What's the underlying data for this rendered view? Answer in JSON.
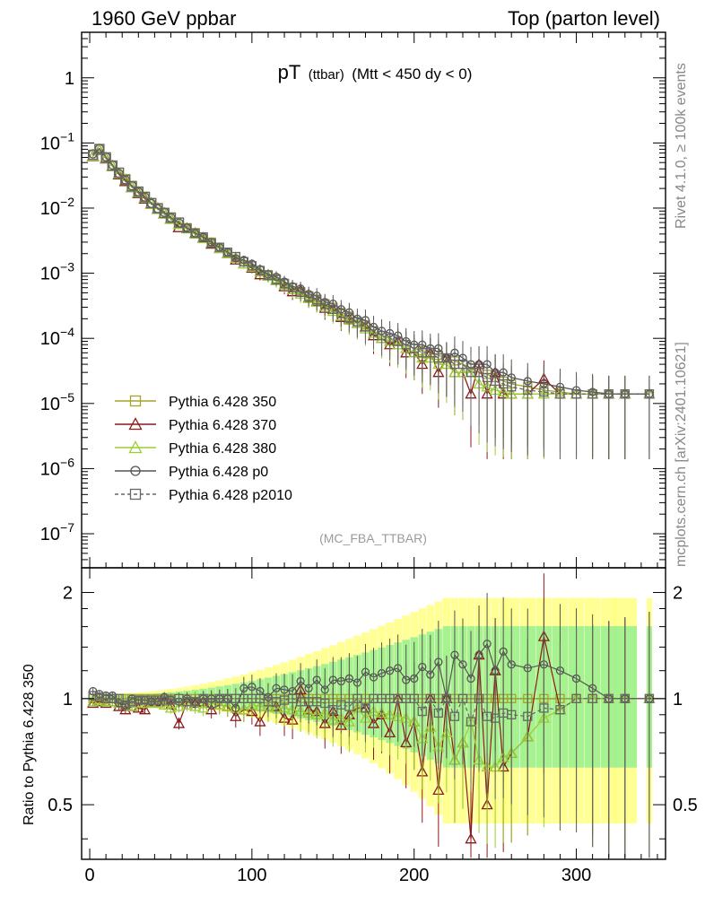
{
  "header": {
    "left": "1960 GeV ppbar",
    "right": "Top (parton level)"
  },
  "side_labels": {
    "rivet": "Rivet 4.1.0, ≥ 100k events",
    "mcplots": "mcplots.cern.ch [arXiv:2401.10621]"
  },
  "chart_data": {
    "type": "line",
    "title_main": "pT",
    "title_sub": "(ttbar)",
    "title_cut": "(Mtt < 450 dy < 0)",
    "analysis_tag": "(MC_FBA_TTBAR)",
    "xlabel": "",
    "ylabel_upper": "",
    "ylabel_ratio": "Ratio to Pythia 6.428 350",
    "xlim": [
      -5,
      355
    ],
    "ylim_upper": [
      3e-08,
      5
    ],
    "ylim_ratio": [
      0.35,
      2.35
    ],
    "yscale_upper": "log",
    "yscale_ratio": "log",
    "x_ticks": [
      0,
      100,
      200,
      300
    ],
    "y_ticks_upper": [
      {
        "value": 1,
        "base": "1",
        "exp": ""
      },
      {
        "value": 0.1,
        "base": "10",
        "exp": "−1"
      },
      {
        "value": 0.01,
        "base": "10",
        "exp": "−2"
      },
      {
        "value": 0.001,
        "base": "10",
        "exp": "−3"
      },
      {
        "value": 0.0001,
        "base": "10",
        "exp": "−4"
      },
      {
        "value": 1e-05,
        "base": "10",
        "exp": "−5"
      },
      {
        "value": 1e-06,
        "base": "10",
        "exp": "−6"
      },
      {
        "value": 1e-07,
        "base": "10",
        "exp": "−7"
      }
    ],
    "y_ticks_ratio": [
      {
        "value": 2,
        "label": "2"
      },
      {
        "value": 1,
        "label": "1"
      },
      {
        "value": 0.5,
        "label": "0.5"
      }
    ],
    "legend_position": "lower-left",
    "x": [
      2,
      6,
      10,
      14,
      18,
      22,
      26,
      30,
      34,
      38,
      42,
      46,
      50,
      55,
      60,
      65,
      70,
      75,
      80,
      85,
      90,
      95,
      100,
      105,
      110,
      115,
      120,
      125,
      130,
      135,
      140,
      145,
      150,
      155,
      160,
      165,
      170,
      175,
      180,
      185,
      190,
      195,
      200,
      205,
      210,
      215,
      220,
      225,
      230,
      235,
      240,
      245,
      250,
      255,
      260,
      270,
      280,
      290,
      300,
      310,
      320,
      330,
      345
    ],
    "series": [
      {
        "name": "Pythia 6.428 350",
        "color": "#a4a42a",
        "marker": "square-open",
        "dash": "",
        "values": [
          0.065,
          0.08,
          0.06,
          0.045,
          0.035,
          0.028,
          0.022,
          0.018,
          0.015,
          0.012,
          0.01,
          0.0085,
          0.0072,
          0.006,
          0.005,
          0.0042,
          0.0036,
          0.003,
          0.0025,
          0.0021,
          0.0018,
          0.0015,
          0.0013,
          0.0011,
          0.00095,
          0.00082,
          0.0007,
          0.0006,
          0.00052,
          0.00045,
          0.0004,
          0.00034,
          0.0003,
          0.00025,
          0.00022,
          0.00018,
          0.00016,
          0.00013,
          0.00011,
          0.0001,
          9e-05,
          8e-05,
          7e-05,
          6.5e-05,
          6e-05,
          5.5e-05,
          5e-05,
          4.5e-05,
          4e-05,
          3.5e-05,
          3e-05,
          2.8e-05,
          2.5e-05,
          2.2e-05,
          2e-05,
          1.8e-05,
          1.6e-05,
          1.5e-05,
          1.4e-05,
          1.4e-05,
          1.4e-05,
          1.4e-05,
          1.4e-05
        ],
        "ratio": [
          1,
          1,
          1,
          1,
          1,
          1,
          1,
          1,
          1,
          1,
          1,
          1,
          1,
          1,
          1,
          1,
          1,
          1,
          1,
          1,
          1,
          1,
          1,
          1,
          1,
          1,
          1,
          1,
          1,
          1,
          1,
          1,
          1,
          1,
          1,
          1,
          1,
          1,
          1,
          1,
          1,
          1,
          1,
          1,
          1,
          1,
          1,
          1,
          1,
          1,
          1,
          1,
          1,
          1,
          1,
          1,
          1,
          1,
          1,
          1,
          1,
          1,
          1
        ]
      },
      {
        "name": "Pythia 6.428 370",
        "color": "#8b1a1a",
        "marker": "triangle-open",
        "dash": "",
        "values": [
          0.063,
          0.078,
          0.058,
          0.044,
          0.033,
          0.026,
          0.021,
          0.017,
          0.014,
          0.0118,
          0.0098,
          0.0083,
          0.0069,
          0.0051,
          0.0049,
          0.0041,
          0.0035,
          0.0028,
          0.0024,
          0.002,
          0.0016,
          0.0014,
          0.0012,
          0.00095,
          0.0009,
          0.00078,
          0.00062,
          0.00052,
          0.00055,
          0.00042,
          0.00037,
          0.00029,
          0.00028,
          0.00021,
          0.0002,
          0.00017,
          0.00015,
          0.00011,
          0.0001,
          8e-05,
          9e-05,
          6e-05,
          6e-05,
          4e-05,
          6e-05,
          3e-05,
          5e-05,
          3e-05,
          3e-05,
          1.4e-05,
          4e-05,
          1.4e-05,
          3e-05,
          1.4e-05,
          1.4e-05,
          1.4e-05,
          2.4e-05,
          1.4e-05,
          1.4e-05,
          1.4e-05,
          1.4e-05,
          1.4e-05,
          1.4e-05
        ],
        "ratio": [
          0.97,
          0.98,
          0.97,
          0.98,
          0.95,
          0.93,
          0.95,
          0.94,
          0.93,
          0.98,
          0.98,
          0.98,
          0.96,
          0.85,
          0.98,
          0.97,
          0.98,
          0.93,
          0.96,
          0.95,
          0.89,
          0.93,
          0.92,
          0.86,
          0.95,
          0.95,
          0.88,
          0.87,
          1.06,
          0.93,
          0.92,
          0.85,
          0.92,
          0.84,
          0.9,
          0.94,
          0.94,
          0.85,
          0.9,
          0.8,
          1.0,
          0.75,
          0.86,
          0.62,
          1.0,
          0.55,
          1.0,
          0.67,
          0.75,
          0.4,
          1.33,
          0.5,
          1.2,
          0.64,
          0.7,
          0.78,
          1.5,
          0.93,
          1.0,
          1.0,
          1.0,
          1.0,
          1.0
        ]
      },
      {
        "name": "Pythia 6.428 380",
        "color": "#9acd32",
        "marker": "triangle-open",
        "dash": "",
        "values": [
          0.064,
          0.079,
          0.059,
          0.044,
          0.034,
          0.027,
          0.021,
          0.0175,
          0.0145,
          0.0116,
          0.0097,
          0.0082,
          0.0068,
          0.0057,
          0.0048,
          0.004,
          0.0034,
          0.0029,
          0.0024,
          0.002,
          0.0017,
          0.0014,
          0.00125,
          0.00105,
          0.0009,
          0.00077,
          0.00066,
          0.00056,
          0.00048,
          0.00041,
          0.00036,
          0.00031,
          0.00026,
          0.00022,
          0.00019,
          0.00017,
          0.00014,
          0.00012,
          0.0001,
          9e-05,
          8e-05,
          7e-05,
          6e-05,
          5e-05,
          5e-05,
          4e-05,
          4e-05,
          3e-05,
          3e-05,
          3e-05,
          2e-05,
          1.8e-05,
          1.6e-05,
          1.5e-05,
          1.4e-05,
          1.4e-05,
          1.4e-05,
          1.4e-05,
          1.4e-05,
          1.4e-05,
          1.4e-05,
          1.4e-05,
          1.4e-05
        ],
        "ratio": [
          0.98,
          0.99,
          0.98,
          0.98,
          0.97,
          0.96,
          0.95,
          0.97,
          0.97,
          0.97,
          0.97,
          0.96,
          0.94,
          0.95,
          0.96,
          0.95,
          0.94,
          0.97,
          0.96,
          0.95,
          0.94,
          0.93,
          0.96,
          0.95,
          0.95,
          0.94,
          0.94,
          0.93,
          0.92,
          0.91,
          0.9,
          0.91,
          0.87,
          0.88,
          0.86,
          0.94,
          0.88,
          0.92,
          0.91,
          0.9,
          0.89,
          0.88,
          0.86,
          0.77,
          0.83,
          0.73,
          0.8,
          0.67,
          0.75,
          0.86,
          0.67,
          0.64,
          0.64,
          0.68,
          0.7,
          0.78,
          0.88,
          0.93,
          1.0,
          1.0,
          1.0,
          1.0,
          1.0
        ]
      },
      {
        "name": "Pythia 6.428 p0",
        "color": "#555555",
        "marker": "circle-open",
        "dash": "",
        "values": [
          0.068,
          0.082,
          0.061,
          0.046,
          0.034,
          0.027,
          0.022,
          0.0178,
          0.0148,
          0.0118,
          0.0098,
          0.0086,
          0.0071,
          0.0059,
          0.005,
          0.0041,
          0.0036,
          0.003,
          0.0025,
          0.0021,
          0.0017,
          0.0016,
          0.0014,
          0.00115,
          0.00096,
          0.00088,
          0.00074,
          0.00063,
          0.00058,
          0.00048,
          0.00045,
          0.00036,
          0.00034,
          0.00028,
          0.00025,
          0.0002,
          0.00019,
          0.00015,
          0.00013,
          0.00012,
          0.00011,
          9e-05,
          8e-05,
          8e-05,
          7e-05,
          7e-05,
          5e-05,
          6e-05,
          5e-05,
          4e-05,
          4e-05,
          4e-05,
          3e-05,
          3e-05,
          2.5e-05,
          2.2e-05,
          2e-05,
          1.8e-05,
          1.6e-05,
          1.5e-05,
          1.4e-05,
          1.4e-05,
          1.4e-05
        ],
        "ratio": [
          1.05,
          1.03,
          1.02,
          1.02,
          0.97,
          0.96,
          1.0,
          0.99,
          0.99,
          0.98,
          0.98,
          1.01,
          0.99,
          0.98,
          1.0,
          0.98,
          1.0,
          1.0,
          1.0,
          1.0,
          0.94,
          1.07,
          1.08,
          1.05,
          1.01,
          1.07,
          1.06,
          1.05,
          1.12,
          1.07,
          1.13,
          1.06,
          1.13,
          1.12,
          1.14,
          1.11,
          1.19,
          1.15,
          1.18,
          1.2,
          1.22,
          1.13,
          1.14,
          1.23,
          1.17,
          1.27,
          1.0,
          1.33,
          1.25,
          1.14,
          1.33,
          1.43,
          1.2,
          1.36,
          1.25,
          1.22,
          1.25,
          1.2,
          1.14,
          1.07,
          1.0,
          1.0,
          1.0
        ]
      },
      {
        "name": "Pythia 6.428 p2010",
        "color": "#666666",
        "marker": "square-open",
        "dash": "4,3",
        "values": [
          0.066,
          0.081,
          0.06,
          0.045,
          0.035,
          0.027,
          0.0215,
          0.0178,
          0.0148,
          0.0119,
          0.0099,
          0.0084,
          0.0071,
          0.006,
          0.0049,
          0.0041,
          0.0036,
          0.0029,
          0.0025,
          0.0021,
          0.0018,
          0.0015,
          0.0013,
          0.0011,
          0.00093,
          0.0008,
          0.00069,
          0.0006,
          0.00051,
          0.00044,
          0.00039,
          0.00033,
          0.00028,
          0.00024,
          0.00021,
          0.00018,
          0.00015,
          0.00013,
          0.00011,
          0.0001,
          9e-05,
          8e-05,
          7e-05,
          6e-05,
          6e-05,
          5e-05,
          5e-05,
          4e-05,
          4e-05,
          3e-05,
          3e-05,
          2.5e-05,
          2.2e-05,
          2e-05,
          1.8e-05,
          1.6e-05,
          1.5e-05,
          1.4e-05,
          1.4e-05,
          1.4e-05,
          1.4e-05,
          1.4e-05,
          1.4e-05
        ],
        "ratio": [
          1.02,
          1.01,
          1.0,
          1.0,
          1.0,
          0.96,
          0.98,
          0.99,
          0.99,
          0.99,
          0.99,
          0.99,
          0.99,
          1.0,
          0.98,
          0.98,
          1.0,
          0.97,
          1.0,
          1.0,
          1.0,
          1.0,
          1.0,
          1.0,
          0.98,
          0.98,
          0.99,
          1.0,
          0.98,
          0.98,
          0.98,
          0.97,
          0.93,
          0.96,
          0.95,
          1.0,
          0.94,
          1.0,
          1.0,
          1.0,
          1.0,
          1.0,
          1.0,
          0.92,
          1.0,
          0.91,
          1.0,
          0.89,
          1.0,
          0.86,
          1.0,
          0.89,
          0.88,
          0.91,
          0.9,
          0.89,
          0.94,
          0.93,
          1.0,
          1.0,
          1.0,
          1.0,
          1.0
        ]
      }
    ]
  }
}
